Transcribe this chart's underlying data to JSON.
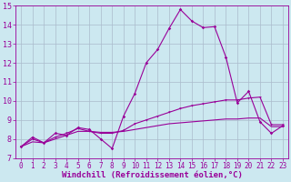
{
  "xlabel": "Windchill (Refroidissement éolien,°C)",
  "background_color": "#cce8f0",
  "line_color": "#990099",
  "grid_color": "#aabbcc",
  "x_values": [
    0,
    1,
    2,
    3,
    4,
    5,
    6,
    7,
    8,
    9,
    10,
    11,
    12,
    13,
    14,
    15,
    16,
    17,
    18,
    19,
    20,
    21,
    22,
    23
  ],
  "series1": [
    7.6,
    8.1,
    7.8,
    8.3,
    8.2,
    8.6,
    8.5,
    8.0,
    7.5,
    9.2,
    10.4,
    12.0,
    12.7,
    13.8,
    14.8,
    14.2,
    13.85,
    13.9,
    12.3,
    9.9,
    10.5,
    8.9,
    8.3,
    8.7
  ],
  "series2": [
    7.6,
    8.0,
    7.8,
    8.1,
    8.3,
    8.55,
    8.4,
    8.3,
    8.3,
    8.45,
    8.8,
    9.0,
    9.2,
    9.4,
    9.6,
    9.75,
    9.85,
    9.95,
    10.05,
    10.05,
    10.15,
    10.2,
    8.75,
    8.75
  ],
  "series3": [
    7.6,
    7.85,
    7.8,
    8.0,
    8.2,
    8.4,
    8.4,
    8.35,
    8.35,
    8.4,
    8.5,
    8.6,
    8.7,
    8.8,
    8.85,
    8.9,
    8.95,
    9.0,
    9.05,
    9.05,
    9.1,
    9.1,
    8.65,
    8.65
  ],
  "ylim": [
    7,
    15
  ],
  "xlim": [
    -0.5,
    23.5
  ],
  "yticks": [
    7,
    8,
    9,
    10,
    11,
    12,
    13,
    14,
    15
  ],
  "xticks": [
    0,
    1,
    2,
    3,
    4,
    5,
    6,
    7,
    8,
    9,
    10,
    11,
    12,
    13,
    14,
    15,
    16,
    17,
    18,
    19,
    20,
    21,
    22,
    23
  ],
  "font_size": 6,
  "xlabel_fontsize": 6.5
}
